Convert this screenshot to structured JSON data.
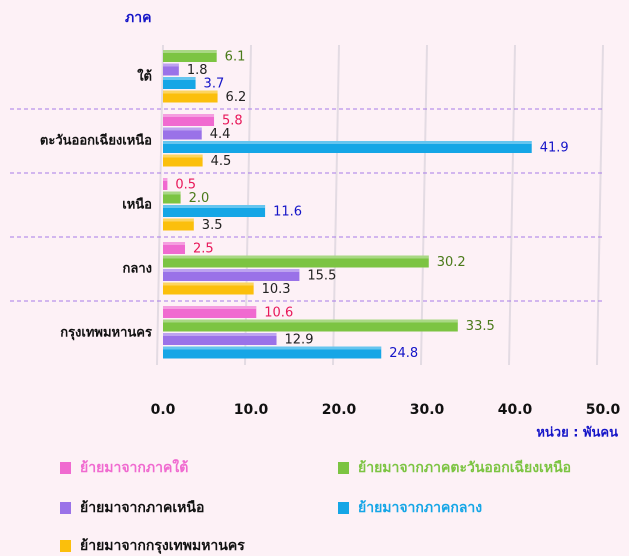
{
  "chart_data": {
    "type": "bar",
    "orientation": "horizontal",
    "y_axis_title": "ภาค",
    "unit_label": "หน่วย : พันคน",
    "categories": [
      "ใต้",
      "ตะวันออกเฉียงเหนือ",
      "เหนือ",
      "กลาง",
      "กรุงเทพมหานคร"
    ],
    "series": [
      {
        "name": "ย้ายมาจากภาคใต้",
        "color": "#f06ad0",
        "label_color": "#e8185a",
        "values": [
          null,
          5.8,
          0.5,
          2.5,
          10.6
        ],
        "value_labels": [
          null,
          "5.8",
          "0.5",
          "2.5",
          "10.6"
        ]
      },
      {
        "name": "ย้ายมาจากภาคตะวันออกเฉียงเหนือ",
        "color": "#7cc442",
        "label_color": "#4a7a1a",
        "values": [
          6.1,
          null,
          2.0,
          30.2,
          33.5
        ],
        "value_labels": [
          "6.1",
          null,
          "2.0",
          "30.2",
          "33.5"
        ]
      },
      {
        "name": "ย้ายมาจากภาคเหนือ",
        "color": "#9a72e8",
        "label_color": "#222222",
        "values": [
          1.8,
          4.4,
          null,
          15.5,
          12.9
        ],
        "value_labels": [
          "1.8",
          "4.4",
          null,
          "15.5",
          "12.9"
        ]
      },
      {
        "name": "ย้ายมาจากภาคกลาง",
        "color": "#15a6e6",
        "label_color": "#1515c8",
        "values": [
          3.7,
          41.9,
          11.6,
          null,
          24.8
        ],
        "value_labels": [
          "3.7",
          "41.9",
          "11.6",
          null,
          "24.8"
        ]
      },
      {
        "name": "ย้ายมาจากกรุงเทพมหานคร",
        "color": "#fbbf0c",
        "label_color": "#222222",
        "values": [
          6.2,
          4.5,
          3.5,
          10.3,
          null
        ],
        "value_labels": [
          "6.2",
          "4.5",
          "3.5",
          "10.3",
          null
        ]
      }
    ],
    "xlim": [
      0,
      50
    ],
    "xticks": [
      {
        "value": 0,
        "label": "0.0"
      },
      {
        "value": 10,
        "label": "10.0"
      },
      {
        "value": 20,
        "label": "20.0"
      },
      {
        "value": 30,
        "label": "30.0"
      },
      {
        "value": 40,
        "label": "40.0"
      },
      {
        "value": 50,
        "label": "50.0"
      }
    ],
    "grid": true
  }
}
